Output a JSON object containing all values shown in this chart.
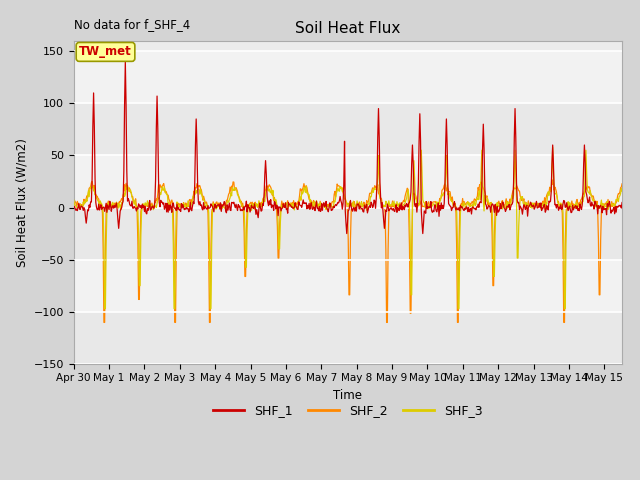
{
  "title": "Soil Heat Flux",
  "xlabel": "Time",
  "ylabel": "Soil Heat Flux (W/m2)",
  "ylim": [
    -150,
    160
  ],
  "yticks": [
    -150,
    -100,
    -50,
    0,
    50,
    100,
    150
  ],
  "annotation_text": "No data for f_SHF_4",
  "legend_labels": [
    "SHF_1",
    "SHF_2",
    "SHF_3"
  ],
  "colors": {
    "SHF_1": "#cc0000",
    "SHF_2": "#ff8800",
    "SHF_3": "#ddcc00"
  },
  "box_label": "TW_met",
  "box_color": "#ffff99",
  "box_border": "#999900",
  "box_text_color": "#cc0000",
  "plot_bg": "#ebebeb",
  "fig_bg": "#d4d4d4",
  "grid_color": "#ffffff",
  "seed": 7
}
